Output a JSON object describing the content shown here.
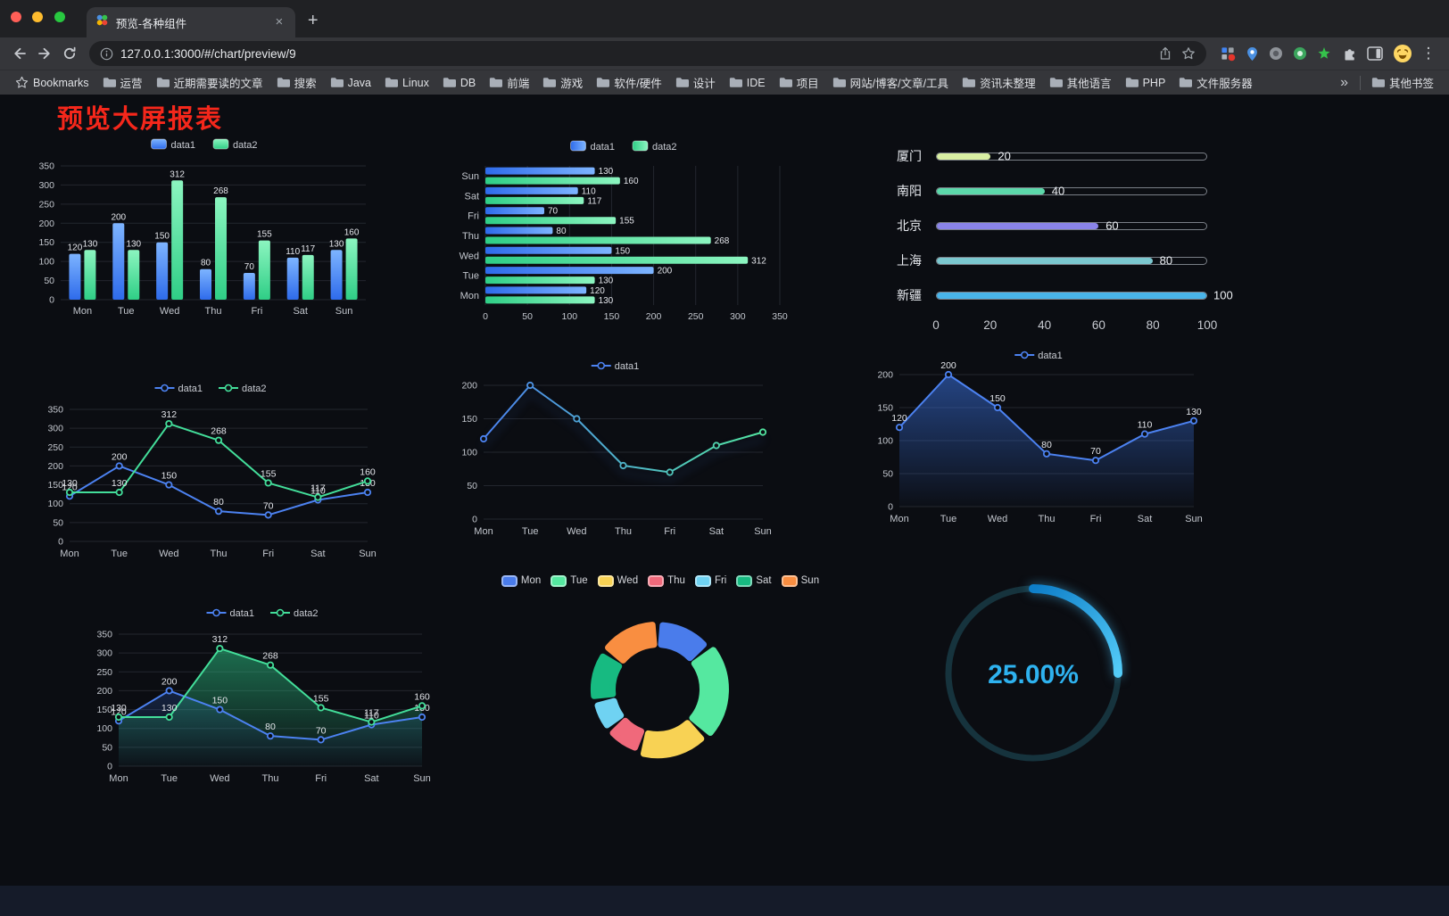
{
  "browser": {
    "tab_title": "预览-各种组件",
    "tab_close_glyph": "×",
    "new_tab_glyph": "+",
    "url": "127.0.0.1:3000/#/chart/preview/9",
    "menu_glyph": "⋮",
    "bookmarks": {
      "label": "Bookmarks",
      "folders": [
        "运营",
        "近期需要读的文章",
        "搜索",
        "Java",
        "Linux",
        "DB",
        "前端",
        "游戏",
        "软件/硬件",
        "设计",
        "IDE",
        "项目",
        "网站/博客/文章/工具",
        "资讯未整理",
        "其他语言",
        "PHP",
        "文件服务器"
      ],
      "overflow_glyph": "»",
      "other_label": "其他书签"
    }
  },
  "page": {
    "title": "预览大屏报表",
    "title_color": "#f5271b",
    "background": "#0b0d12"
  },
  "chart_data": [
    {
      "id": "bar-vertical",
      "type": "bar",
      "categories": [
        "Mon",
        "Tue",
        "Wed",
        "Thu",
        "Fri",
        "Sat",
        "Sun"
      ],
      "series": [
        {
          "name": "data1",
          "values": [
            120,
            200,
            150,
            80,
            70,
            110,
            130
          ],
          "color": "#3E7BF2",
          "gradient": [
            "#7DB4FF",
            "#2E6BEB"
          ]
        },
        {
          "name": "data2",
          "values": [
            130,
            130,
            312,
            268,
            155,
            117,
            160
          ],
          "color": "#45DD96",
          "gradient": [
            "#8CF5C0",
            "#2FCE86"
          ]
        }
      ],
      "ylim": [
        0,
        350
      ],
      "yticks": [
        0,
        50,
        100,
        150,
        200,
        250,
        300,
        350
      ],
      "legend_position": "top",
      "value_labels": true
    },
    {
      "id": "bar-horizontal",
      "type": "bar-horizontal",
      "categories": [
        "Mon",
        "Tue",
        "Wed",
        "Thu",
        "Fri",
        "Sat",
        "Sun"
      ],
      "series": [
        {
          "name": "data1",
          "values": [
            120,
            200,
            150,
            80,
            70,
            110,
            130
          ],
          "color": "#3E7BF2",
          "gradient": [
            "#7DB4FF",
            "#2E6BEB"
          ]
        },
        {
          "name": "data2",
          "values": [
            130,
            130,
            312,
            268,
            155,
            117,
            160
          ],
          "color": "#45DD96",
          "gradient": [
            "#8CF5C0",
            "#2FCE86"
          ]
        }
      ],
      "xlim": [
        0,
        350
      ],
      "xticks": [
        0,
        50,
        100,
        150,
        200,
        250,
        300,
        350
      ],
      "legend_position": "top",
      "value_labels": true
    },
    {
      "id": "progress-bars",
      "type": "progress",
      "items": [
        {
          "label": "厦门",
          "value": 20,
          "color": "#D9EFA3"
        },
        {
          "label": "南阳",
          "value": 40,
          "color": "#5CD8AA"
        },
        {
          "label": "北京",
          "value": 60,
          "color": "#8A84E9"
        },
        {
          "label": "上海",
          "value": 80,
          "color": "#7BC7CF"
        },
        {
          "label": "新疆",
          "value": 100,
          "color": "#49B4E9"
        }
      ],
      "max": 100,
      "xticks": [
        0,
        20,
        40,
        60,
        80,
        100
      ]
    },
    {
      "id": "line-dual",
      "type": "line",
      "categories": [
        "Mon",
        "Tue",
        "Wed",
        "Thu",
        "Fri",
        "Sat",
        "Sun"
      ],
      "series": [
        {
          "name": "data1",
          "values": [
            120,
            200,
            150,
            80,
            70,
            110,
            130
          ],
          "color": "#4C82F1",
          "labels": true
        },
        {
          "name": "data2",
          "values": [
            130,
            130,
            312,
            268,
            155,
            117,
            160
          ],
          "color": "#43DE9A",
          "labels": true
        }
      ],
      "ylim": [
        0,
        350
      ],
      "yticks": [
        0,
        50,
        100,
        150,
        200,
        250,
        300,
        350
      ],
      "legend_position": "top"
    },
    {
      "id": "line-gradient",
      "type": "line",
      "categories": [
        "Mon",
        "Tue",
        "Wed",
        "Thu",
        "Fri",
        "Sat",
        "Sun"
      ],
      "series": [
        {
          "name": "data1",
          "values": [
            120,
            200,
            150,
            80,
            70,
            110,
            130
          ],
          "color": "#4C82F1",
          "line_gradient": [
            "#4C82F1",
            "#52E5A1"
          ],
          "labels": false
        }
      ],
      "ylim": [
        0,
        200
      ],
      "yticks": [
        0,
        50,
        100,
        150,
        200
      ],
      "legend_position": "top"
    },
    {
      "id": "line-area",
      "type": "line",
      "categories": [
        "Mon",
        "Tue",
        "Wed",
        "Thu",
        "Fri",
        "Sat",
        "Sun"
      ],
      "series": [
        {
          "name": "data1",
          "values": [
            120,
            200,
            150,
            80,
            70,
            110,
            130
          ],
          "color": "#4C82F1",
          "labels": true,
          "area_color": "#3E7CF5",
          "area_opacity": 0.5
        }
      ],
      "ylim": [
        0,
        200
      ],
      "yticks": [
        0,
        50,
        100,
        150,
        200
      ],
      "legend_position": "top"
    },
    {
      "id": "line-dual-area",
      "type": "line",
      "categories": [
        "Mon",
        "Tue",
        "Wed",
        "Thu",
        "Fri",
        "Sat",
        "Sun"
      ],
      "series": [
        {
          "name": "data1",
          "values": [
            120,
            200,
            150,
            80,
            70,
            110,
            130
          ],
          "color": "#4C82F1",
          "labels": true,
          "area_color": "#3E7CF5",
          "area_opacity": 0.2
        },
        {
          "name": "data2",
          "values": [
            130,
            130,
            312,
            268,
            155,
            117,
            160
          ],
          "color": "#43DE9A",
          "labels": true,
          "area_color": "#2ECF8C",
          "area_opacity": 0.5
        }
      ],
      "ylim": [
        0,
        350
      ],
      "yticks": [
        0,
        50,
        100,
        150,
        200,
        250,
        300,
        350
      ],
      "legend_position": "top"
    },
    {
      "id": "donut",
      "type": "pie",
      "categories": [
        "Mon",
        "Tue",
        "Wed",
        "Thu",
        "Fri",
        "Sat",
        "Sun"
      ],
      "values": [
        120,
        200,
        150,
        80,
        70,
        110,
        130
      ],
      "colors": [
        "#4A7CEB",
        "#55E8A0",
        "#F8D254",
        "#F0697B",
        "#6FD2F2",
        "#17BA81",
        "#F98E41"
      ],
      "rose": true,
      "donut": true,
      "legend_position": "top"
    },
    {
      "id": "gauge",
      "type": "gauge",
      "value": 25,
      "max": 100,
      "label": "25.00%",
      "color": "#2EB2EF",
      "track_color": "#16333D",
      "progress_gradient": [
        "#0E7EC8",
        "#54CCF8"
      ]
    }
  ]
}
